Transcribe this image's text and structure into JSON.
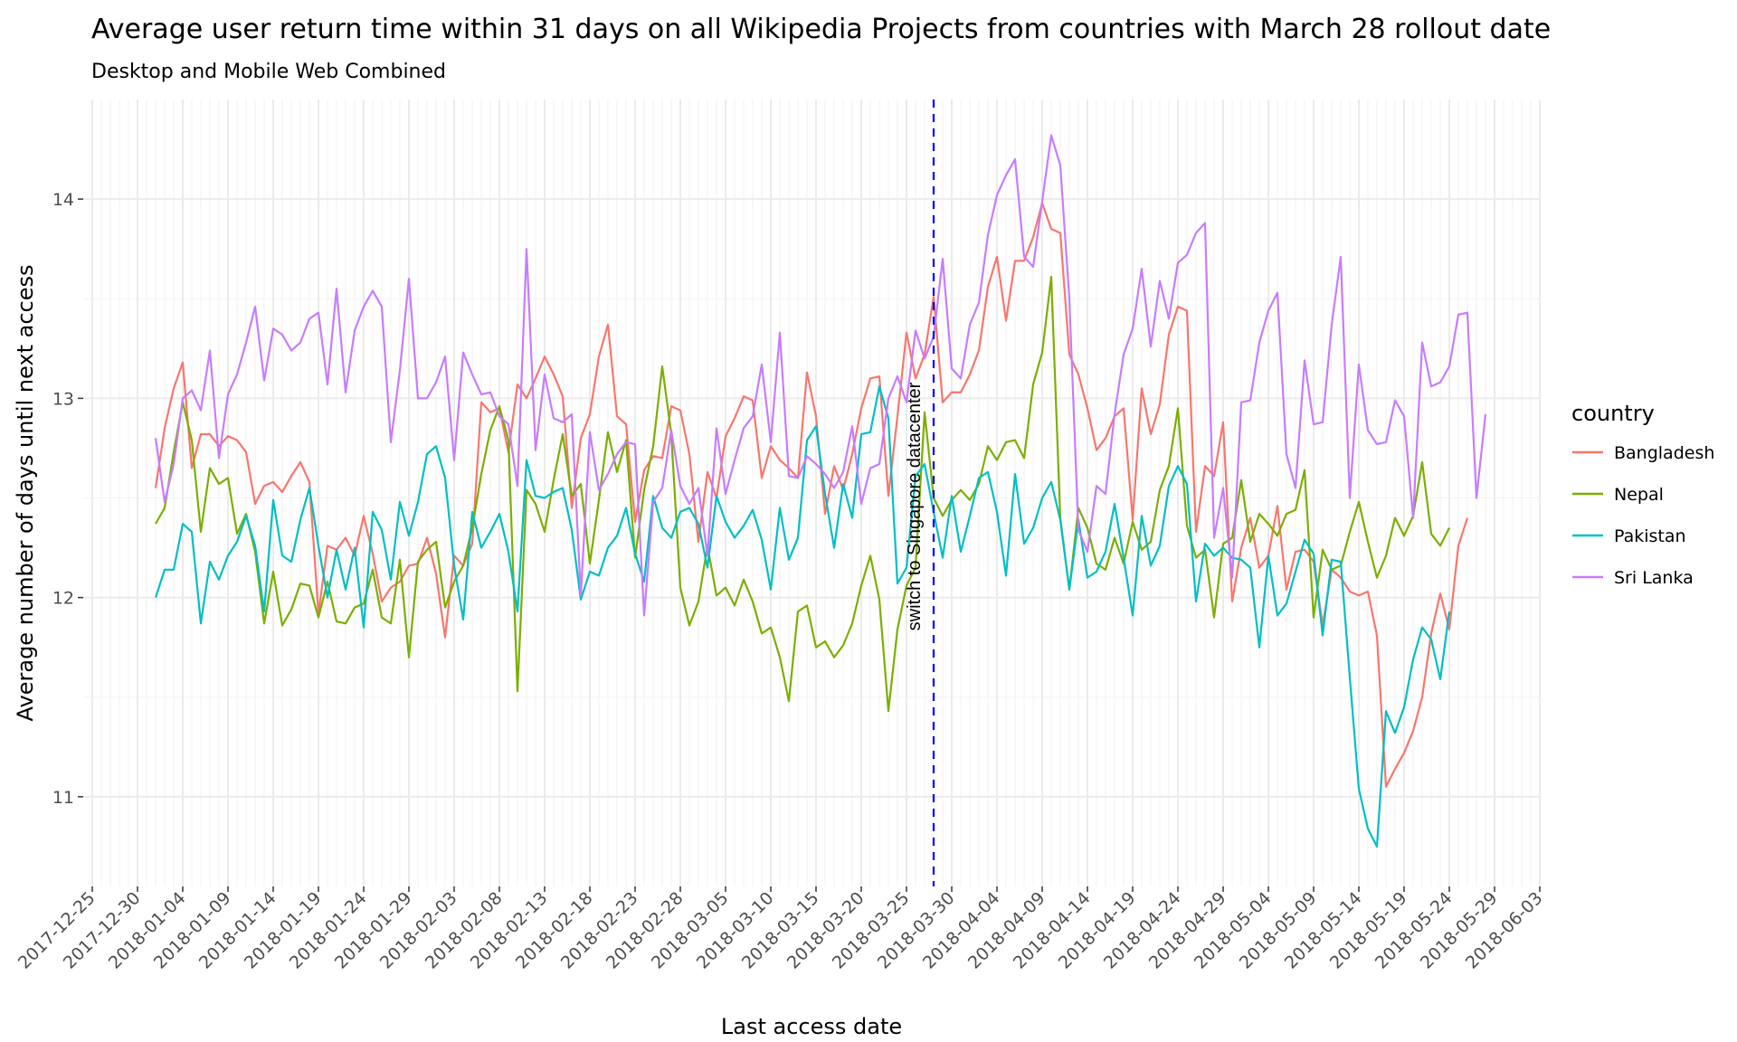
{
  "chart_data": {
    "type": "line",
    "title": "Average user return time within 31 days on all Wikipedia Projects from countries with March 28 rollout date",
    "subtitle": "Desktop and Mobile Web Combined",
    "xlabel": "Last access date",
    "ylabel": "Average number of days until next access",
    "x_axis_type": "date",
    "xlim": [
      "2017-12-24",
      "2018-06-03"
    ],
    "ylim": [
      10.55,
      14.5
    ],
    "x_ticks": [
      "2017-12-25",
      "2017-12-30",
      "2018-01-04",
      "2018-01-09",
      "2018-01-14",
      "2018-01-19",
      "2018-01-24",
      "2018-01-29",
      "2018-02-03",
      "2018-02-08",
      "2018-02-13",
      "2018-02-18",
      "2018-02-23",
      "2018-02-28",
      "2018-03-05",
      "2018-03-10",
      "2018-03-15",
      "2018-03-20",
      "2018-03-25",
      "2018-03-30",
      "2018-04-04",
      "2018-04-09",
      "2018-04-14",
      "2018-04-19",
      "2018-04-24",
      "2018-04-29",
      "2018-05-04",
      "2018-05-09",
      "2018-05-14",
      "2018-05-19",
      "2018-05-24",
      "2018-05-29",
      "2018-06-03"
    ],
    "y_ticks": [
      11,
      12,
      13,
      14
    ],
    "grid": true,
    "legend_position": "right",
    "legend_title": "country",
    "start_date": "2018-01-01",
    "annotation": {
      "text": "switch to Singapore datacenter",
      "x": "2018-03-28",
      "line_style": "dashed",
      "line_color": "#0000ff"
    },
    "series": [
      {
        "name": "Bangladesh",
        "color": "#F8766D",
        "values": [
          12.55,
          12.85,
          13.05,
          13.18,
          12.65,
          12.82,
          12.82,
          12.76,
          12.81,
          12.79,
          12.73,
          12.47,
          12.56,
          12.58,
          12.53,
          12.61,
          12.68,
          12.58,
          11.92,
          12.26,
          12.24,
          12.3,
          12.21,
          12.41,
          12.22,
          11.98,
          12.05,
          12.08,
          12.16,
          12.17,
          12.3,
          12.12,
          11.8,
          12.21,
          12.16,
          12.27,
          12.98,
          12.93,
          12.95,
          12.73,
          13.07,
          13.0,
          13.1,
          13.21,
          13.12,
          13.01,
          12.45,
          12.8,
          12.92,
          13.21,
          13.37,
          12.91,
          12.87,
          12.38,
          12.64,
          12.71,
          12.7,
          12.96,
          12.94,
          12.72,
          12.28,
          12.63,
          12.5,
          12.81,
          12.9,
          13.01,
          12.99,
          12.6,
          12.76,
          12.69,
          12.65,
          12.6,
          13.13,
          12.91,
          12.42,
          12.66,
          12.54,
          12.72,
          12.95,
          13.1,
          13.11,
          12.51,
          12.91,
          13.33,
          13.1,
          13.22,
          13.51,
          12.98,
          13.03,
          13.03,
          13.12,
          13.24,
          13.56,
          13.71,
          13.39,
          13.69,
          13.69,
          13.81,
          13.98,
          13.85,
          13.83,
          13.22,
          13.12,
          12.95,
          12.74,
          12.8,
          12.91,
          12.95,
          12.39,
          13.05,
          12.82,
          12.97,
          13.32,
          13.46,
          13.44,
          12.33,
          12.66,
          12.61,
          12.88,
          11.98,
          12.25,
          12.4,
          12.15,
          12.21,
          12.46,
          12.04,
          12.23,
          12.24,
          12.18,
          11.86,
          12.14,
          12.1,
          12.03,
          12.01,
          12.03,
          11.81,
          11.05,
          11.14,
          11.22,
          11.33,
          11.5,
          11.82,
          12.02,
          11.84,
          12.26,
          12.4
        ]
      },
      {
        "name": "Nepal",
        "color": "#7CAE00",
        "values": [
          12.37,
          12.45,
          12.73,
          12.98,
          12.79,
          12.33,
          12.65,
          12.57,
          12.6,
          12.32,
          12.42,
          12.23,
          11.87,
          12.13,
          11.86,
          11.94,
          12.07,
          12.06,
          11.9,
          12.08,
          11.88,
          11.87,
          11.95,
          11.97,
          12.14,
          11.9,
          11.87,
          12.19,
          11.7,
          12.18,
          12.24,
          12.28,
          11.95,
          12.08,
          12.16,
          12.35,
          12.62,
          12.84,
          12.96,
          12.79,
          11.53,
          12.54,
          12.47,
          12.33,
          12.59,
          12.82,
          12.51,
          12.57,
          12.17,
          12.49,
          12.83,
          12.63,
          12.79,
          12.2,
          12.54,
          12.76,
          13.16,
          12.82,
          12.05,
          11.86,
          11.98,
          12.26,
          12.01,
          12.05,
          11.96,
          12.09,
          11.98,
          11.82,
          11.85,
          11.7,
          11.48,
          11.93,
          11.96,
          11.75,
          11.78,
          11.7,
          11.76,
          11.87,
          12.06,
          12.21,
          11.99,
          11.43,
          11.84,
          12.06,
          12.15,
          12.93,
          12.5,
          12.41,
          12.49,
          12.54,
          12.49,
          12.57,
          12.76,
          12.69,
          12.78,
          12.79,
          12.7,
          13.07,
          13.23,
          13.61,
          12.4,
          12.04,
          12.45,
          12.35,
          12.17,
          12.14,
          12.3,
          12.17,
          12.38,
          12.24,
          12.28,
          12.54,
          12.66,
          12.95,
          12.36,
          12.2,
          12.24,
          11.9,
          12.27,
          12.3,
          12.59,
          12.28,
          12.42,
          12.37,
          12.31,
          12.42,
          12.44,
          12.64,
          11.9,
          12.24,
          12.14,
          12.16,
          12.33,
          12.48,
          12.28,
          12.1,
          12.21,
          12.4,
          12.31,
          12.41,
          12.68,
          12.32,
          12.26,
          12.35
        ]
      },
      {
        "name": "Pakistan",
        "color": "#00BFC4",
        "values": [
          12.0,
          12.14,
          12.14,
          12.37,
          12.33,
          11.87,
          12.18,
          12.09,
          12.21,
          12.28,
          12.41,
          12.26,
          11.93,
          12.49,
          12.21,
          12.18,
          12.39,
          12.55,
          12.26,
          12.0,
          12.24,
          12.04,
          12.25,
          11.85,
          12.43,
          12.34,
          12.09,
          12.48,
          12.31,
          12.48,
          12.72,
          12.76,
          12.6,
          12.16,
          11.89,
          12.43,
          12.25,
          12.33,
          12.42,
          12.23,
          11.93,
          12.69,
          12.51,
          12.5,
          12.53,
          12.55,
          12.34,
          11.99,
          12.13,
          12.11,
          12.25,
          12.31,
          12.45,
          12.22,
          12.08,
          12.51,
          12.35,
          12.3,
          12.43,
          12.45,
          12.37,
          12.15,
          12.51,
          12.38,
          12.3,
          12.36,
          12.44,
          12.29,
          12.04,
          12.45,
          12.19,
          12.3,
          12.79,
          12.86,
          12.52,
          12.25,
          12.57,
          12.4,
          12.82,
          12.83,
          13.06,
          12.9,
          12.07,
          12.15,
          12.61,
          12.67,
          12.43,
          12.2,
          12.51,
          12.23,
          12.41,
          12.6,
          12.63,
          12.43,
          12.11,
          12.62,
          12.27,
          12.35,
          12.5,
          12.58,
          12.39,
          12.04,
          12.39,
          12.1,
          12.13,
          12.23,
          12.47,
          12.2,
          11.91,
          12.41,
          12.16,
          12.26,
          12.56,
          12.66,
          12.57,
          11.98,
          12.27,
          12.21,
          12.25,
          12.2,
          12.19,
          12.15,
          11.75,
          12.21,
          11.91,
          11.97,
          12.13,
          12.29,
          12.22,
          11.81,
          12.19,
          12.18,
          11.6,
          11.04,
          10.84,
          10.75,
          11.43,
          11.32,
          11.45,
          11.69,
          11.85,
          11.79,
          11.59,
          11.93
        ]
      },
      {
        "name": "Sri Lanka",
        "color": "#C77CFF",
        "values": [
          12.8,
          12.48,
          12.67,
          13.0,
          13.04,
          12.94,
          13.24,
          12.7,
          13.02,
          13.12,
          13.28,
          13.46,
          13.09,
          13.35,
          13.32,
          13.24,
          13.28,
          13.4,
          13.43,
          13.07,
          13.55,
          13.03,
          13.34,
          13.46,
          13.54,
          13.46,
          12.78,
          13.14,
          13.6,
          13.0,
          13.0,
          13.08,
          13.21,
          12.69,
          13.23,
          13.12,
          13.02,
          13.03,
          12.91,
          12.87,
          12.56,
          13.75,
          12.74,
          13.12,
          12.9,
          12.88,
          12.92,
          12.01,
          12.83,
          12.54,
          12.62,
          12.72,
          12.78,
          12.77,
          11.91,
          12.48,
          12.55,
          12.84,
          12.56,
          12.47,
          12.55,
          12.21,
          12.85,
          12.52,
          12.69,
          12.85,
          12.91,
          13.17,
          12.78,
          13.33,
          12.61,
          12.6,
          12.71,
          12.67,
          12.62,
          12.55,
          12.63,
          12.86,
          12.47,
          12.65,
          12.67,
          13.0,
          13.11,
          12.98,
          13.34,
          13.2,
          13.31,
          13.7,
          13.15,
          13.1,
          13.37,
          13.48,
          13.82,
          14.02,
          14.12,
          14.2,
          13.71,
          13.66,
          13.99,
          14.32,
          14.17,
          13.5,
          12.34,
          12.23,
          12.56,
          12.52,
          12.92,
          13.22,
          13.35,
          13.65,
          13.26,
          13.59,
          13.4,
          13.68,
          13.72,
          13.83,
          13.88,
          12.3,
          12.55,
          12.1,
          12.98,
          12.99,
          13.28,
          13.44,
          13.53,
          12.72,
          12.55,
          13.19,
          12.87,
          12.88,
          13.37,
          13.71,
          12.5,
          13.17,
          12.84,
          12.77,
          12.78,
          12.99,
          12.91,
          12.4,
          13.28,
          13.06,
          13.08,
          13.16,
          13.42,
          13.43,
          12.5,
          12.92
        ]
      }
    ]
  }
}
